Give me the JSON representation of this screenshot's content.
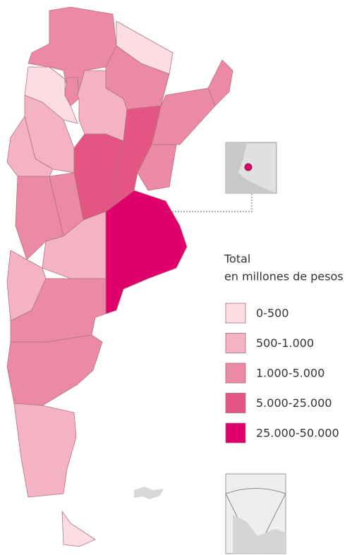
{
  "legend": {
    "title": [
      "Total",
      "en millones de pesos"
    ],
    "items": [
      {
        "label": "0-500",
        "color": "#fbdde3"
      },
      {
        "label": "500-1.000",
        "color": "#f4b3c4"
      },
      {
        "label": "1.000-5.000",
        "color": "#ec89a5"
      },
      {
        "label": "5.000-25.000",
        "color": "#e45584"
      },
      {
        "label": "25.000-50.000",
        "color": "#e0006b"
      }
    ]
  }
}
